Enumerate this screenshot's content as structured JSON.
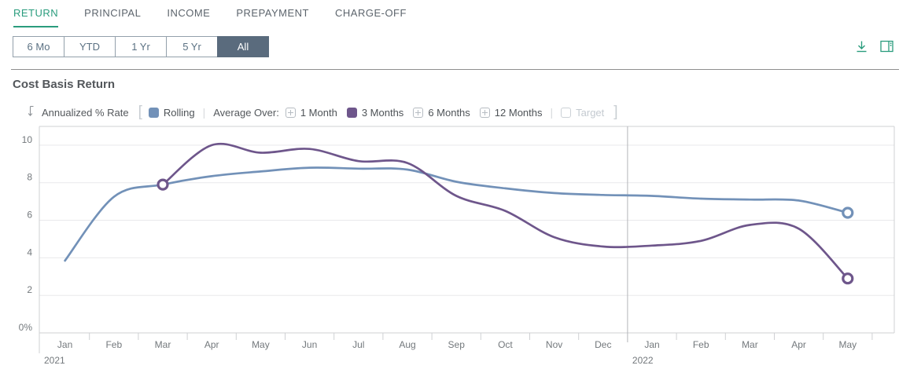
{
  "tabs": {
    "active": "RETURN",
    "items": [
      {
        "label": "RETURN"
      },
      {
        "label": "PRINCIPAL"
      },
      {
        "label": "INCOME"
      },
      {
        "label": "PREPAYMENT"
      },
      {
        "label": "CHARGE-OFF"
      }
    ]
  },
  "range_selector": {
    "selected": "All",
    "options": [
      {
        "label": "6 Mo"
      },
      {
        "label": "YTD"
      },
      {
        "label": "1 Yr"
      },
      {
        "label": "5 Yr"
      },
      {
        "label": "All"
      }
    ]
  },
  "section": {
    "title": "Cost Basis Return"
  },
  "legend": {
    "axis_label": "Annualized % Rate",
    "open_bracket": "[",
    "close_bracket": "]",
    "rolling": {
      "label": "Rolling",
      "color": "#7291b8"
    },
    "average_over_label": "Average Over:",
    "options": [
      {
        "label": "1 Month",
        "state": "addable"
      },
      {
        "label": "3 Months",
        "state": "selected",
        "color": "#6e568b"
      },
      {
        "label": "6 Months",
        "state": "addable"
      },
      {
        "label": "12 Months",
        "state": "addable"
      },
      {
        "label": "Target",
        "state": "disabled"
      }
    ]
  },
  "theme": {
    "accent_teal": "#2a9c7d",
    "selected_button_bg": "#5a6b7d",
    "grid_color": "#e9e9eb",
    "plot_border_color": "#cfd0d3",
    "year_line_color": "#b4b5b9",
    "axis_text_color": "#73787c"
  },
  "chart_data": {
    "type": "line",
    "title": "Cost Basis Return",
    "ylabel": "Annualized % Rate",
    "grid": "horizontal",
    "legend_position": "top",
    "ylim": [
      0,
      11
    ],
    "yticks": {
      "values": [
        0,
        2,
        4,
        6,
        8,
        10
      ],
      "labels": [
        "0%",
        "2",
        "4",
        "6",
        "8",
        "10"
      ]
    },
    "categories": [
      "Jan",
      "Feb",
      "Mar",
      "Apr",
      "May",
      "Jun",
      "Jul",
      "Aug",
      "Sep",
      "Oct",
      "Nov",
      "Dec",
      "Jan",
      "Feb",
      "Mar",
      "Apr",
      "May"
    ],
    "year_breaks": [
      {
        "index": 0,
        "label": "2021"
      },
      {
        "index": 12,
        "label": "2022"
      }
    ],
    "series": [
      {
        "name": "Rolling",
        "color": "#7291b8",
        "start_marker": false,
        "end_marker": true,
        "values": [
          3.85,
          7.25,
          7.9,
          8.35,
          8.6,
          8.8,
          8.75,
          8.7,
          8.05,
          7.7,
          7.45,
          7.35,
          7.3,
          7.15,
          7.1,
          7.05,
          6.4
        ]
      },
      {
        "name": "3 Months",
        "color": "#6e568b",
        "start_marker": true,
        "end_marker": true,
        "values": [
          null,
          null,
          7.9,
          10.0,
          9.6,
          9.8,
          9.15,
          9.05,
          7.3,
          6.5,
          5.1,
          4.6,
          4.65,
          4.9,
          5.75,
          5.55,
          2.9
        ]
      }
    ]
  }
}
